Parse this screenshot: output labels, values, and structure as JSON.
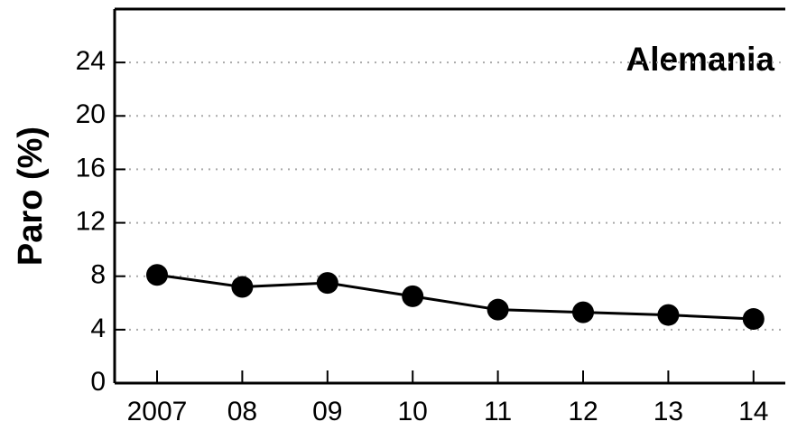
{
  "chart_data": {
    "type": "line",
    "title": "Alemania",
    "y_label": "Paro (%)",
    "categories": [
      "2007",
      "08",
      "09",
      "10",
      "11",
      "12",
      "13",
      "14"
    ],
    "series": [
      {
        "name": "Alemania",
        "color": "#000000",
        "values": [
          8.1,
          7.2,
          7.5,
          6.5,
          5.5,
          5.3,
          5.1,
          4.8
        ]
      }
    ],
    "ylim": [
      0,
      28
    ],
    "yticks": [
      0,
      4,
      8,
      12,
      16,
      20,
      24
    ],
    "grid": true
  }
}
